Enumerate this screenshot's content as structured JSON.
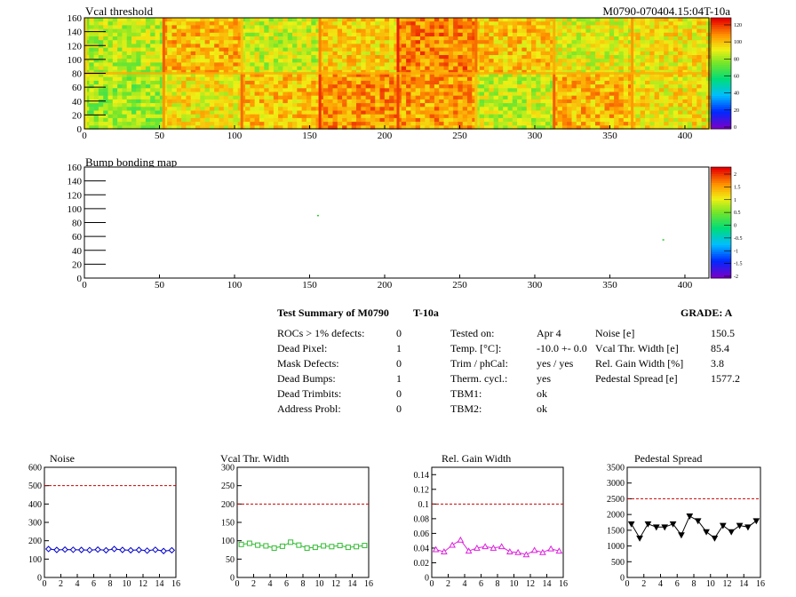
{
  "header": {
    "title_left": "Vcal threshold",
    "title_right": "M0790-070404.15:04T-10a"
  },
  "maps": [
    {
      "title": "Vcal threshold",
      "x_ticks": [
        0,
        50,
        100,
        150,
        200,
        250,
        300,
        350,
        400
      ],
      "y_ticks": [
        0,
        20,
        40,
        60,
        80,
        100,
        120,
        140,
        160
      ],
      "xlim": [
        0,
        416
      ],
      "ylim": [
        0,
        160
      ],
      "palette_labels": [
        "0",
        "20",
        "40",
        "60",
        "80",
        "100",
        "120"
      ],
      "roc_blocks_top": [
        86,
        104,
        88,
        99,
        112,
        102,
        92,
        96
      ],
      "roc_blocks_bottom": [
        82,
        96,
        102,
        110,
        108,
        88,
        104,
        96
      ]
    },
    {
      "title": "Bump bonding map",
      "x_ticks": [
        0,
        50,
        100,
        150,
        200,
        250,
        300,
        350,
        400
      ],
      "y_ticks": [
        0,
        20,
        40,
        60,
        80,
        100,
        120,
        140,
        160
      ],
      "xlim": [
        0,
        416
      ],
      "ylim": [
        0,
        160
      ],
      "palette_labels": [
        "-2",
        "-1.5",
        "-1",
        "-0.5",
        "0",
        "0.5",
        "1",
        "1.5",
        "2"
      ],
      "points": [
        [
          155,
          91
        ],
        [
          385,
          56
        ]
      ]
    }
  ],
  "summary": {
    "title": "Test Summary of M0790",
    "test": "T-10a",
    "grade": "GRADE:  A",
    "defects": [
      {
        "label": "ROCs > 1% defects:",
        "value": "0"
      },
      {
        "label": "Dead Pixel:",
        "value": "1"
      },
      {
        "label": "Mask Defects:",
        "value": "0"
      },
      {
        "label": "Dead Bumps:",
        "value": "1"
      },
      {
        "label": "Dead Trimbits:",
        "value": "0"
      },
      {
        "label": "Address Probl:",
        "value": "0"
      }
    ],
    "conditions": [
      {
        "label": "Tested on:",
        "value": "Apr 4"
      },
      {
        "label": "Temp. [°C]:",
        "value": "-10.0 +- 0.0"
      },
      {
        "label": "Trim / phCal:",
        "value": "yes / yes"
      },
      {
        "label": "Therm. cycl.:",
        "value": "yes"
      },
      {
        "label": "TBM1:",
        "value": "ok"
      },
      {
        "label": "TBM2:",
        "value": "ok"
      }
    ],
    "results": [
      {
        "label": "Noise [e]",
        "value": "150.5"
      },
      {
        "label": "Vcal Thr. Width [e]",
        "value": "85.4"
      },
      {
        "label": "Rel. Gain Width [%]",
        "value": "3.8"
      },
      {
        "label": "Pedestal Spread [e]",
        "value": "1577.2"
      }
    ]
  },
  "chart_data": [
    {
      "type": "line",
      "title": "Noise",
      "color": "#0000cc",
      "marker": "diamond",
      "x": [
        0,
        1,
        2,
        3,
        4,
        5,
        6,
        7,
        8,
        9,
        10,
        11,
        12,
        13,
        14,
        15
      ],
      "values": [
        155,
        150,
        152,
        151,
        150,
        149,
        152,
        148,
        155,
        150,
        148,
        150,
        146,
        151,
        144,
        148
      ],
      "xlim": [
        0,
        16
      ],
      "ylim": [
        0,
        600
      ],
      "y_ticks": [
        0,
        100,
        200,
        300,
        400,
        500,
        600
      ],
      "x_ticks": [
        0,
        2,
        4,
        6,
        8,
        10,
        12,
        14,
        16
      ],
      "limit": 500
    },
    {
      "type": "line",
      "title": "Vcal Thr. Width",
      "color": "#33bb33",
      "marker": "square",
      "x": [
        0,
        1,
        2,
        3,
        4,
        5,
        6,
        7,
        8,
        9,
        10,
        11,
        12,
        13,
        14,
        15
      ],
      "values": [
        90,
        93,
        88,
        86,
        80,
        85,
        96,
        88,
        80,
        82,
        86,
        84,
        87,
        82,
        84,
        87
      ],
      "xlim": [
        0,
        16
      ],
      "ylim": [
        0,
        300
      ],
      "y_ticks": [
        0,
        50,
        100,
        150,
        200,
        250,
        300
      ],
      "x_ticks": [
        0,
        2,
        4,
        6,
        8,
        10,
        12,
        14,
        16
      ],
      "limit": 200
    },
    {
      "type": "line",
      "title": "Rel. Gain Width",
      "color": "#dd22dd",
      "marker": "triangle",
      "x": [
        0,
        1,
        2,
        3,
        4,
        5,
        6,
        7,
        8,
        9,
        10,
        11,
        12,
        13,
        14,
        15
      ],
      "values": [
        0.038,
        0.035,
        0.044,
        0.051,
        0.036,
        0.04,
        0.042,
        0.04,
        0.042,
        0.035,
        0.034,
        0.031,
        0.037,
        0.034,
        0.039,
        0.036
      ],
      "xlim": [
        0,
        16
      ],
      "ylim": [
        0,
        0.15
      ],
      "y_ticks": [
        0,
        0.02,
        0.04,
        0.06,
        0.08,
        0.1,
        0.12,
        0.14
      ],
      "x_ticks": [
        0,
        2,
        4,
        6,
        8,
        10,
        12,
        14,
        16
      ],
      "limit": 0.1
    },
    {
      "type": "line",
      "title": "Pedestal Spread",
      "color": "#000000",
      "marker": "triangle-down",
      "x": [
        0,
        1,
        2,
        3,
        4,
        5,
        6,
        7,
        8,
        9,
        10,
        11,
        12,
        13,
        14,
        15
      ],
      "values": [
        1700,
        1250,
        1700,
        1600,
        1600,
        1700,
        1350,
        1950,
        1800,
        1450,
        1250,
        1650,
        1450,
        1650,
        1600,
        1800
      ],
      "xlim": [
        0,
        16
      ],
      "ylim": [
        0,
        3500
      ],
      "y_ticks": [
        0,
        500,
        1000,
        1500,
        2000,
        2500,
        3000,
        3500
      ],
      "x_ticks": [
        0,
        2,
        4,
        6,
        8,
        10,
        12,
        14,
        16
      ],
      "limit": 2500
    }
  ]
}
